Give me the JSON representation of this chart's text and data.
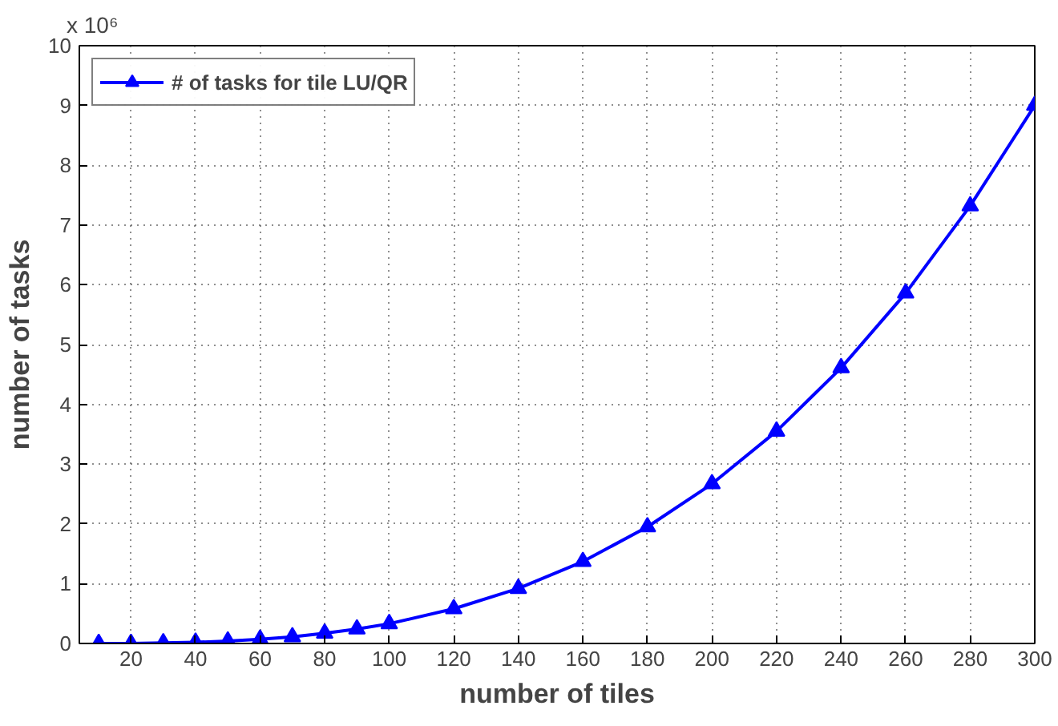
{
  "chart_data": {
    "type": "line",
    "xlabel": "number of tiles",
    "ylabel": "number of tasks",
    "annotations": [
      "x 10⁶"
    ],
    "x": [
      10,
      20,
      30,
      40,
      50,
      60,
      70,
      80,
      90,
      100,
      120,
      140,
      160,
      180,
      200,
      220,
      240,
      260,
      280,
      300
    ],
    "series": [
      {
        "name": "# of tasks for tile LU/QR",
        "color": "#0000ff",
        "values": [
          0.0,
          0.0,
          0.01,
          0.02,
          0.04,
          0.07,
          0.11,
          0.17,
          0.24,
          0.33,
          0.58,
          0.92,
          1.37,
          1.95,
          2.67,
          3.55,
          4.61,
          5.86,
          7.32,
          9.0
        ]
      }
    ],
    "xlim": [
      4,
      300
    ],
    "xticks": [
      20,
      40,
      60,
      80,
      100,
      120,
      140,
      160,
      180,
      200,
      220,
      240,
      260,
      280,
      300
    ],
    "ylim": [
      0,
      10
    ],
    "yticks": [
      0,
      1,
      2,
      3,
      4,
      5,
      6,
      7,
      8,
      9,
      10
    ],
    "grid": true,
    "legend": "top left",
    "marker": "triangle",
    "line_style": "solid"
  }
}
